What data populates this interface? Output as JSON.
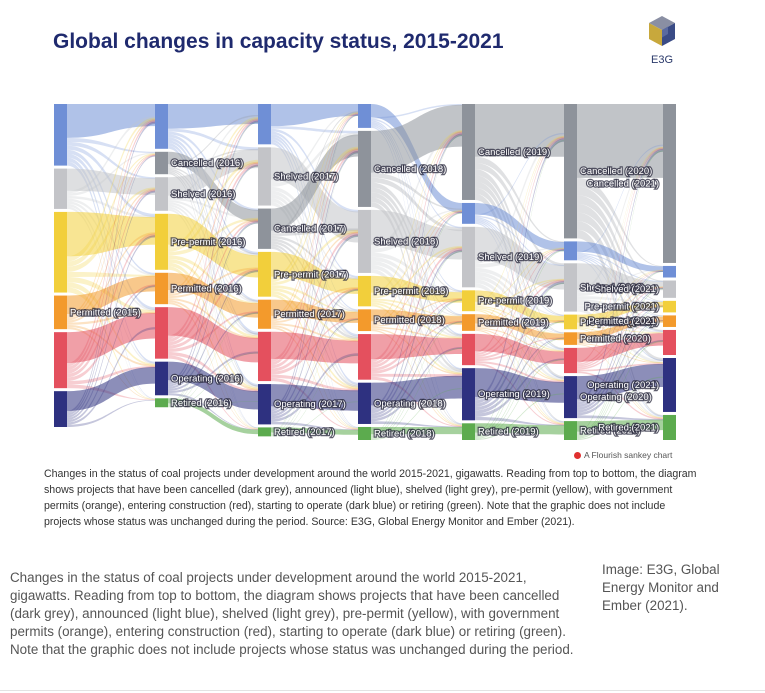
{
  "figure": {
    "title": "Global changes in capacity status, 2015-2021",
    "logo_text": "E3G",
    "logo_icon": "hexagon-cube-icon",
    "flourish_label": "A Flourish sankey chart",
    "caption": "Changes in the status of coal projects under development around the world 2015-2021, gigawatts. Reading from top to bottom, the diagram shows projects that have been cancelled (dark grey), announced (light blue), shelved (light grey), pre-permit (yellow), with government permits (orange), entering construction (red), starting to operate (dark blue) or retiring (green). Note that the graphic does not include projects whose status was unchanged during the period. Source: E3G, Global Energy Monitor and Ember (2021)."
  },
  "page": {
    "caption": "Changes in the status of coal projects under development around the world 2015-2021, gigawatts. Reading from top to bottom, the diagram shows projects that have been cancelled (dark grey), announced (light blue), shelved (light grey), pre-permit (yellow), with government permits (orange), entering construction (red), starting to operate (dark blue) or retiring (green). Note that the graphic does not include projects whose status was unchanged during the period.",
    "image_credit": "Image: E3G, Global Energy Monitor and Ember (2021)."
  },
  "chart_data": {
    "type": "sankey",
    "title": "Global changes in capacity status, 2015-2021",
    "columns": [
      "2015",
      "2016",
      "2017",
      "2018",
      "2019",
      "2020",
      "2021"
    ],
    "colors": {
      "cancelled": "#8e939b",
      "announced": "#6f8fd6",
      "shelved": "#c3c4c8",
      "prepermit": "#f2cf3b",
      "permitted": "#f39a2c",
      "construction": "#e4505e",
      "operating": "#2e3180",
      "retired": "#5cab4e"
    },
    "nodes": [
      {
        "col": 0,
        "status": "announced",
        "value": 55,
        "label": ""
      },
      {
        "col": 0,
        "status": "shelved",
        "value": 36,
        "label": ""
      },
      {
        "col": 0,
        "status": "prepermit",
        "value": 72,
        "label": ""
      },
      {
        "col": 0,
        "status": "permitted",
        "value": 30,
        "label": "Permitted (2015)"
      },
      {
        "col": 0,
        "status": "construction",
        "value": 50,
        "label": ""
      },
      {
        "col": 0,
        "status": "operating",
        "value": 32,
        "label": ""
      },
      {
        "col": 1,
        "status": "announced",
        "value": 40,
        "label": ""
      },
      {
        "col": 1,
        "status": "cancelled",
        "value": 20,
        "label": "Cancelled (2016)"
      },
      {
        "col": 1,
        "status": "shelved",
        "value": 30,
        "label": "Shelved (2016)"
      },
      {
        "col": 1,
        "status": "prepermit",
        "value": 50,
        "label": "Pre-permit (2016)"
      },
      {
        "col": 1,
        "status": "permitted",
        "value": 28,
        "label": "Permitted (2016)"
      },
      {
        "col": 1,
        "status": "construction",
        "value": 46,
        "label": ""
      },
      {
        "col": 1,
        "status": "operating",
        "value": 30,
        "label": "Operating (2016)"
      },
      {
        "col": 1,
        "status": "retired",
        "value": 8,
        "label": "Retired (2016)"
      },
      {
        "col": 2,
        "status": "announced",
        "value": 36,
        "label": ""
      },
      {
        "col": 2,
        "status": "shelved",
        "value": 52,
        "label": "Shelved (2017)"
      },
      {
        "col": 2,
        "status": "cancelled",
        "value": 36,
        "label": "Cancelled (2017)"
      },
      {
        "col": 2,
        "status": "prepermit",
        "value": 40,
        "label": "Pre-permit (2017)"
      },
      {
        "col": 2,
        "status": "permitted",
        "value": 26,
        "label": "Permitted (2017)"
      },
      {
        "col": 2,
        "status": "construction",
        "value": 44,
        "label": ""
      },
      {
        "col": 2,
        "status": "operating",
        "value": 36,
        "label": "Operating (2017)"
      },
      {
        "col": 2,
        "status": "retired",
        "value": 8,
        "label": "Retired (2017)"
      },
      {
        "col": 3,
        "status": "announced",
        "value": 22,
        "label": ""
      },
      {
        "col": 3,
        "status": "cancelled",
        "value": 70,
        "label": "Cancelled (2018)"
      },
      {
        "col": 3,
        "status": "shelved",
        "value": 58,
        "label": "Shelved (2018)"
      },
      {
        "col": 3,
        "status": "prepermit",
        "value": 28,
        "label": "Pre-permit (2018)"
      },
      {
        "col": 3,
        "status": "permitted",
        "value": 20,
        "label": "Permitted (2018)"
      },
      {
        "col": 3,
        "status": "construction",
        "value": 42,
        "label": ""
      },
      {
        "col": 3,
        "status": "operating",
        "value": 38,
        "label": "Operating (2018)"
      },
      {
        "col": 3,
        "status": "retired",
        "value": 12,
        "label": "Retired (2018)"
      },
      {
        "col": 4,
        "status": "cancelled",
        "value": 92,
        "label": "Cancelled (2019)"
      },
      {
        "col": 4,
        "status": "announced",
        "value": 20,
        "label": ""
      },
      {
        "col": 4,
        "status": "shelved",
        "value": 58,
        "label": "Shelved (2019)"
      },
      {
        "col": 4,
        "status": "prepermit",
        "value": 20,
        "label": "Pre-permit (2019)"
      },
      {
        "col": 4,
        "status": "permitted",
        "value": 16,
        "label": "Permitted (2019)"
      },
      {
        "col": 4,
        "status": "construction",
        "value": 30,
        "label": ""
      },
      {
        "col": 4,
        "status": "operating",
        "value": 50,
        "label": "Operating (2019)"
      },
      {
        "col": 4,
        "status": "retired",
        "value": 16,
        "label": "Retired (2019)"
      },
      {
        "col": 5,
        "status": "cancelled",
        "value": 128,
        "label": "Cancelled (2020)"
      },
      {
        "col": 5,
        "status": "announced",
        "value": 18,
        "label": ""
      },
      {
        "col": 5,
        "status": "shelved",
        "value": 46,
        "label": "Shelved (2020)"
      },
      {
        "col": 5,
        "status": "prepermit",
        "value": 14,
        "label": "Pre-permit (2020)"
      },
      {
        "col": 5,
        "status": "permitted",
        "value": 12,
        "label": "Permitted (2020)"
      },
      {
        "col": 5,
        "status": "construction",
        "value": 24,
        "label": ""
      },
      {
        "col": 5,
        "status": "operating",
        "value": 40,
        "label": "Operating (2020)"
      },
      {
        "col": 5,
        "status": "retired",
        "value": 18,
        "label": "Retired (2020)"
      },
      {
        "col": 6,
        "status": "cancelled",
        "value": 165,
        "label": "Cancelled (2021)"
      },
      {
        "col": 6,
        "status": "announced",
        "value": 12,
        "label": ""
      },
      {
        "col": 6,
        "status": "shelved",
        "value": 18,
        "label": "Shelved (2021)"
      },
      {
        "col": 6,
        "status": "prepermit",
        "value": 12,
        "label": "Pre-permit (2021)"
      },
      {
        "col": 6,
        "status": "permitted",
        "value": 12,
        "label": "Permitted (2021)"
      },
      {
        "col": 6,
        "status": "construction",
        "value": 26,
        "label": ""
      },
      {
        "col": 6,
        "status": "operating",
        "value": 56,
        "label": "Operating (2021)"
      },
      {
        "col": 6,
        "status": "retired",
        "value": 26,
        "label": "Retired (2021)"
      }
    ]
  }
}
